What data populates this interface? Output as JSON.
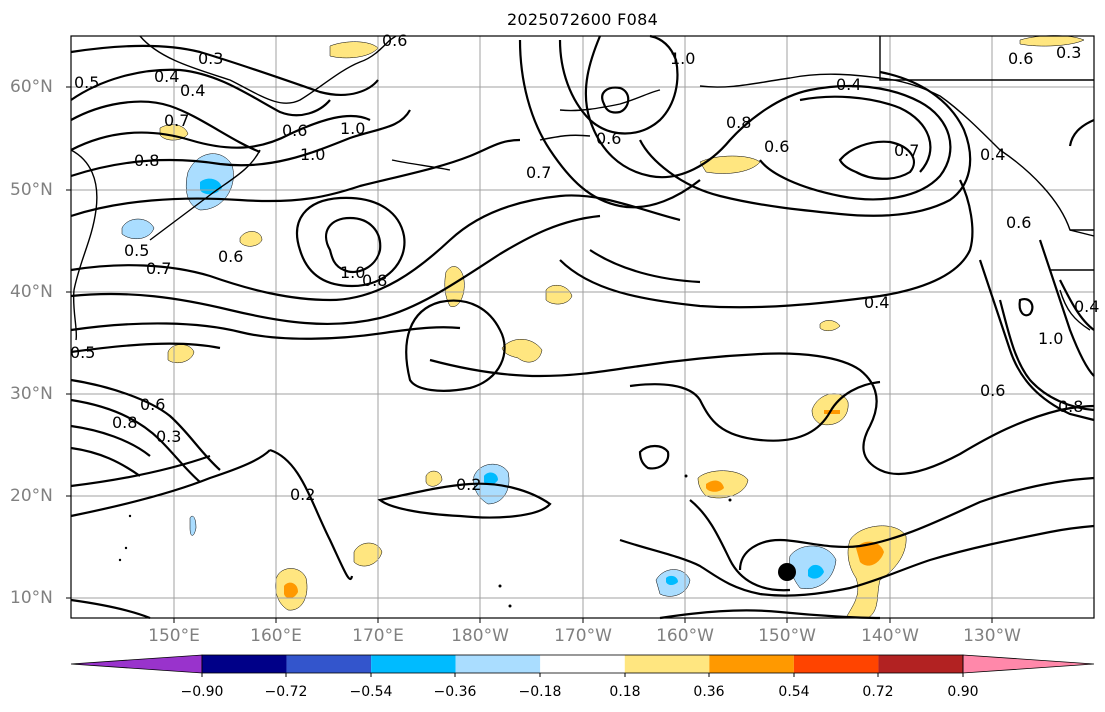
{
  "title": "2025072600 F084",
  "lat_labels": [
    "60°N",
    "50°N",
    "40°N",
    "30°N",
    "20°N",
    "10°N"
  ],
  "lon_labels": [
    "150°E",
    "160°E",
    "170°E",
    "180°W",
    "170°W",
    "160°W",
    "150°W",
    "140°W",
    "130°W"
  ],
  "colorbar": {
    "tick_labels": [
      "−0.90",
      "−0.72",
      "−0.54",
      "−0.36",
      "−0.18",
      "0.18",
      "0.36",
      "0.54",
      "0.72",
      "0.90"
    ],
    "colors": [
      "#9933cc",
      "#000088",
      "#3355cc",
      "#00bbff",
      "#aaddff",
      "#ffffff",
      "#ffe680",
      "#ff9900",
      "#ff4400",
      "#b22222",
      "#ff88aa"
    ]
  },
  "contour_labels": [
    "0.3",
    "0.4",
    "0.5",
    "0.7",
    "0.8",
    "0.6",
    "0.6",
    "1.0",
    "1.0",
    "0.6",
    "0.7",
    "1.0",
    "0.6",
    "0.4",
    "0.8",
    "0.6",
    "0.7",
    "0.6",
    "0.7",
    "0.6",
    "0.8",
    "1.0",
    "0.4",
    "0.6",
    "0.4",
    "0.5",
    "0.8",
    "0.6",
    "0.3",
    "0.2",
    "0.2",
    "0.5",
    "0.8",
    "1.0",
    "0.4",
    "0.3",
    "0.4"
  ]
}
